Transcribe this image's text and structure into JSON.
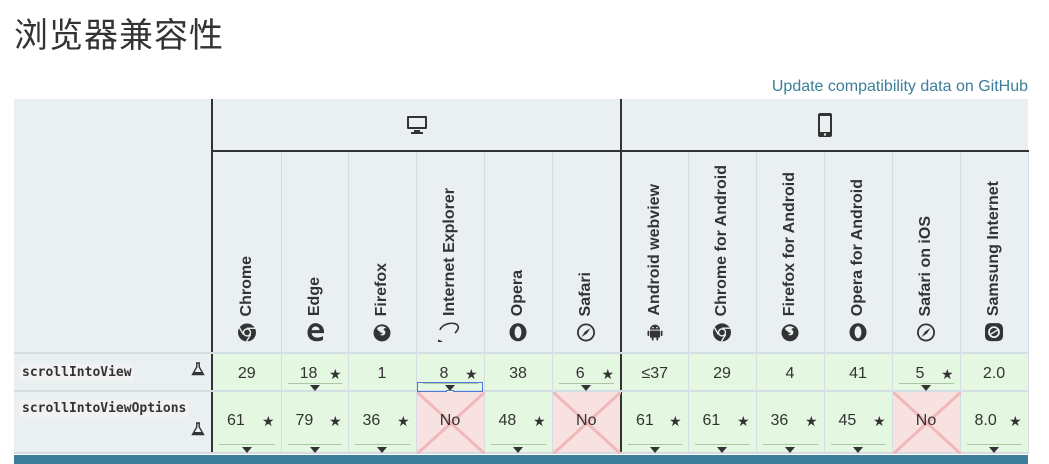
{
  "page": {
    "title": "浏览器兼容性",
    "github_link": "Update compatibility data on GitHub"
  },
  "platforms": {
    "desktop": {
      "icon": "desktop-icon"
    },
    "mobile": {
      "icon": "mobile-icon"
    }
  },
  "browsers": [
    {
      "name": "Chrome",
      "icon": "chrome-icon",
      "platform": "desktop"
    },
    {
      "name": "Edge",
      "icon": "edge-icon",
      "platform": "desktop"
    },
    {
      "name": "Firefox",
      "icon": "firefox-icon",
      "platform": "desktop"
    },
    {
      "name": "Internet Explorer",
      "icon": "ie-icon",
      "platform": "desktop"
    },
    {
      "name": "Opera",
      "icon": "opera-icon",
      "platform": "desktop"
    },
    {
      "name": "Safari",
      "icon": "safari-icon",
      "platform": "desktop"
    },
    {
      "name": "Android webview",
      "icon": "android-icon",
      "platform": "mobile"
    },
    {
      "name": "Chrome for Android",
      "icon": "chrome-icon",
      "platform": "mobile"
    },
    {
      "name": "Firefox for Android",
      "icon": "firefox-icon",
      "platform": "mobile"
    },
    {
      "name": "Opera for Android",
      "icon": "opera-icon",
      "platform": "mobile"
    },
    {
      "name": "Safari on iOS",
      "icon": "safari-icon",
      "platform": "mobile"
    },
    {
      "name": "Samsung Internet",
      "icon": "samsung-icon",
      "platform": "mobile"
    }
  ],
  "features": [
    {
      "name": "scrollIntoView",
      "experimental": true,
      "support": [
        {
          "value": "29",
          "star": false,
          "toggle": false,
          "supported": true
        },
        {
          "value": "18",
          "star": true,
          "toggle": true,
          "supported": true
        },
        {
          "value": "1",
          "star": false,
          "toggle": false,
          "supported": true
        },
        {
          "value": "8",
          "star": true,
          "toggle": true,
          "supported": true
        },
        {
          "value": "38",
          "star": false,
          "toggle": false,
          "supported": true
        },
        {
          "value": "6",
          "star": true,
          "toggle": true,
          "supported": true
        },
        {
          "value": "≤37",
          "star": false,
          "toggle": false,
          "supported": true
        },
        {
          "value": "29",
          "star": false,
          "toggle": false,
          "supported": true
        },
        {
          "value": "4",
          "star": false,
          "toggle": false,
          "supported": true
        },
        {
          "value": "41",
          "star": false,
          "toggle": false,
          "supported": true
        },
        {
          "value": "5",
          "star": true,
          "toggle": true,
          "supported": true
        },
        {
          "value": "2.0",
          "star": false,
          "toggle": false,
          "supported": true
        }
      ]
    },
    {
      "name": "scrollIntoViewOptions",
      "experimental": true,
      "support": [
        {
          "value": "61",
          "star": true,
          "toggle": true,
          "supported": true
        },
        {
          "value": "79",
          "star": true,
          "toggle": true,
          "supported": true
        },
        {
          "value": "36",
          "star": true,
          "toggle": true,
          "supported": true
        },
        {
          "value": "No",
          "star": false,
          "toggle": false,
          "supported": false
        },
        {
          "value": "48",
          "star": true,
          "toggle": true,
          "supported": true
        },
        {
          "value": "No",
          "star": false,
          "toggle": false,
          "supported": false
        },
        {
          "value": "61",
          "star": true,
          "toggle": true,
          "supported": true
        },
        {
          "value": "61",
          "star": true,
          "toggle": true,
          "supported": true
        },
        {
          "value": "36",
          "star": true,
          "toggle": true,
          "supported": true
        },
        {
          "value": "45",
          "star": true,
          "toggle": true,
          "supported": true
        },
        {
          "value": "No",
          "star": false,
          "toggle": false,
          "supported": false
        },
        {
          "value": "8.0",
          "star": true,
          "toggle": true,
          "supported": true
        }
      ]
    }
  ],
  "colors": {
    "header_bg": "#eaeff2",
    "supported_bg": "#e4f8e1",
    "unsupported_bg": "#f8e1e1",
    "unsupported_cross": "#f0b8b8",
    "link": "#3d7e9a",
    "divider": "#333333"
  }
}
